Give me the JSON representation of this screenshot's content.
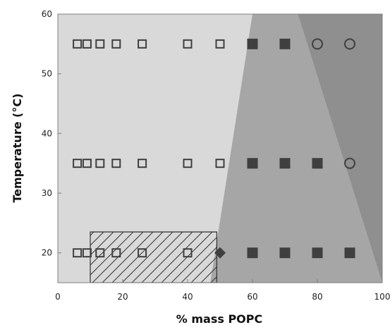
{
  "chart_data": {
    "type": "scatter",
    "xlabel": "% mass POPC",
    "ylabel": "Temperature (°C)",
    "xlim": [
      0,
      100
    ],
    "ylim": [
      15,
      60
    ],
    "xticks": [
      0,
      20,
      40,
      60,
      80,
      100
    ],
    "yticks": [
      20,
      30,
      40,
      50,
      60
    ],
    "grid": false,
    "series": [
      {
        "marker": "open-square",
        "points": [
          {
            "x": 6,
            "y": 55
          },
          {
            "x": 9,
            "y": 55
          },
          {
            "x": 13,
            "y": 55
          },
          {
            "x": 18,
            "y": 55
          },
          {
            "x": 26,
            "y": 55
          },
          {
            "x": 40,
            "y": 55
          },
          {
            "x": 50,
            "y": 55
          },
          {
            "x": 6,
            "y": 35
          },
          {
            "x": 9,
            "y": 35
          },
          {
            "x": 13,
            "y": 35
          },
          {
            "x": 18,
            "y": 35
          },
          {
            "x": 26,
            "y": 35
          },
          {
            "x": 40,
            "y": 35
          },
          {
            "x": 50,
            "y": 35
          },
          {
            "x": 6,
            "y": 20
          },
          {
            "x": 9,
            "y": 20
          },
          {
            "x": 13,
            "y": 20
          },
          {
            "x": 18,
            "y": 20
          },
          {
            "x": 26,
            "y": 20
          },
          {
            "x": 40,
            "y": 20
          }
        ]
      },
      {
        "marker": "filled-square",
        "points": [
          {
            "x": 60,
            "y": 55
          },
          {
            "x": 70,
            "y": 55
          },
          {
            "x": 60,
            "y": 35
          },
          {
            "x": 70,
            "y": 35
          },
          {
            "x": 80,
            "y": 35
          },
          {
            "x": 60,
            "y": 20
          },
          {
            "x": 70,
            "y": 20
          },
          {
            "x": 80,
            "y": 20
          },
          {
            "x": 90,
            "y": 20
          }
        ]
      },
      {
        "marker": "open-circle",
        "points": [
          {
            "x": 80,
            "y": 55
          },
          {
            "x": 90,
            "y": 55
          },
          {
            "x": 90,
            "y": 35
          }
        ]
      },
      {
        "marker": "filled-diamond",
        "points": [
          {
            "x": 50,
            "y": 20
          }
        ]
      }
    ],
    "regions": [
      {
        "fill": "#d9d9d9",
        "polygon": [
          [
            0,
            15
          ],
          [
            0,
            60
          ],
          [
            100,
            60
          ],
          [
            100,
            15
          ]
        ]
      },
      {
        "fill": "#a6a6a6",
        "polygon": [
          [
            47,
            15
          ],
          [
            60,
            60
          ],
          [
            74,
            60
          ],
          [
            100,
            15
          ]
        ]
      },
      {
        "fill": "#8f8f8f",
        "polygon": [
          [
            74,
            60
          ],
          [
            100,
            60
          ],
          [
            100,
            15
          ]
        ]
      },
      {
        "fill": "hatched",
        "polygon": [
          [
            10,
            15
          ],
          [
            10,
            23.5
          ],
          [
            49,
            23.5
          ],
          [
            49,
            15
          ]
        ]
      }
    ],
    "colors": {
      "background": "#d9d9d9",
      "middle_region": "#a6a6a6",
      "right_region": "#8f8f8f",
      "marker": "#3f3f3f"
    }
  }
}
